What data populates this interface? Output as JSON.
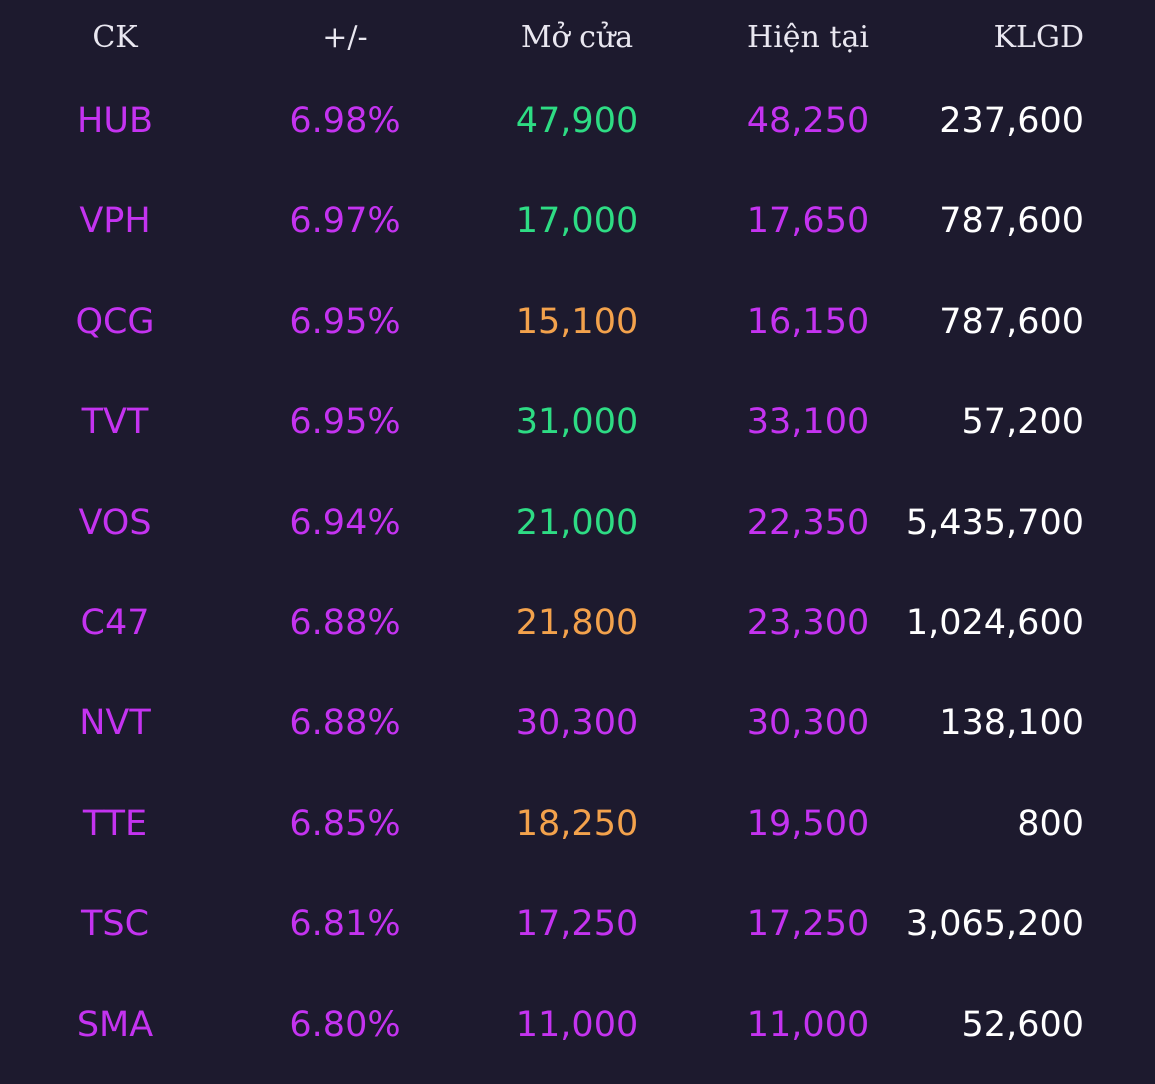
{
  "colors": {
    "background": "#1d1a2e",
    "ceiling": "#c433f0",
    "up": "#2edc84",
    "reference": "#f3a24c",
    "volume": "#ffffff",
    "header": "#e9e7f0"
  },
  "header": {
    "symbol": "CK",
    "change": "+/-",
    "open": "Mở cửa",
    "current": "Hiện tại",
    "volume": "KLGD"
  },
  "rows": [
    {
      "symbol": "HUB",
      "change": "6.98%",
      "open": "47,900",
      "open_status": "up",
      "current": "48,250",
      "volume": "237,600"
    },
    {
      "symbol": "VPH",
      "change": "6.97%",
      "open": "17,000",
      "open_status": "up",
      "current": "17,650",
      "volume": "787,600"
    },
    {
      "symbol": "QCG",
      "change": "6.95%",
      "open": "15,100",
      "open_status": "reference",
      "current": "16,150",
      "volume": "787,600"
    },
    {
      "symbol": "TVT",
      "change": "6.95%",
      "open": "31,000",
      "open_status": "up",
      "current": "33,100",
      "volume": "57,200"
    },
    {
      "symbol": "VOS",
      "change": "6.94%",
      "open": "21,000",
      "open_status": "up",
      "current": "22,350",
      "volume": "5,435,700"
    },
    {
      "symbol": "C47",
      "change": "6.88%",
      "open": "21,800",
      "open_status": "reference",
      "current": "23,300",
      "volume": "1,024,600"
    },
    {
      "symbol": "NVT",
      "change": "6.88%",
      "open": "30,300",
      "open_status": "ceiling",
      "current": "30,300",
      "volume": "138,100"
    },
    {
      "symbol": "TTE",
      "change": "6.85%",
      "open": "18,250",
      "open_status": "reference",
      "current": "19,500",
      "volume": "800"
    },
    {
      "symbol": "TSC",
      "change": "6.81%",
      "open": "17,250",
      "open_status": "ceiling",
      "current": "17,250",
      "volume": "3,065,200"
    },
    {
      "symbol": "SMA",
      "change": "6.80%",
      "open": "11,000",
      "open_status": "ceiling",
      "current": "11,000",
      "volume": "52,600"
    }
  ]
}
